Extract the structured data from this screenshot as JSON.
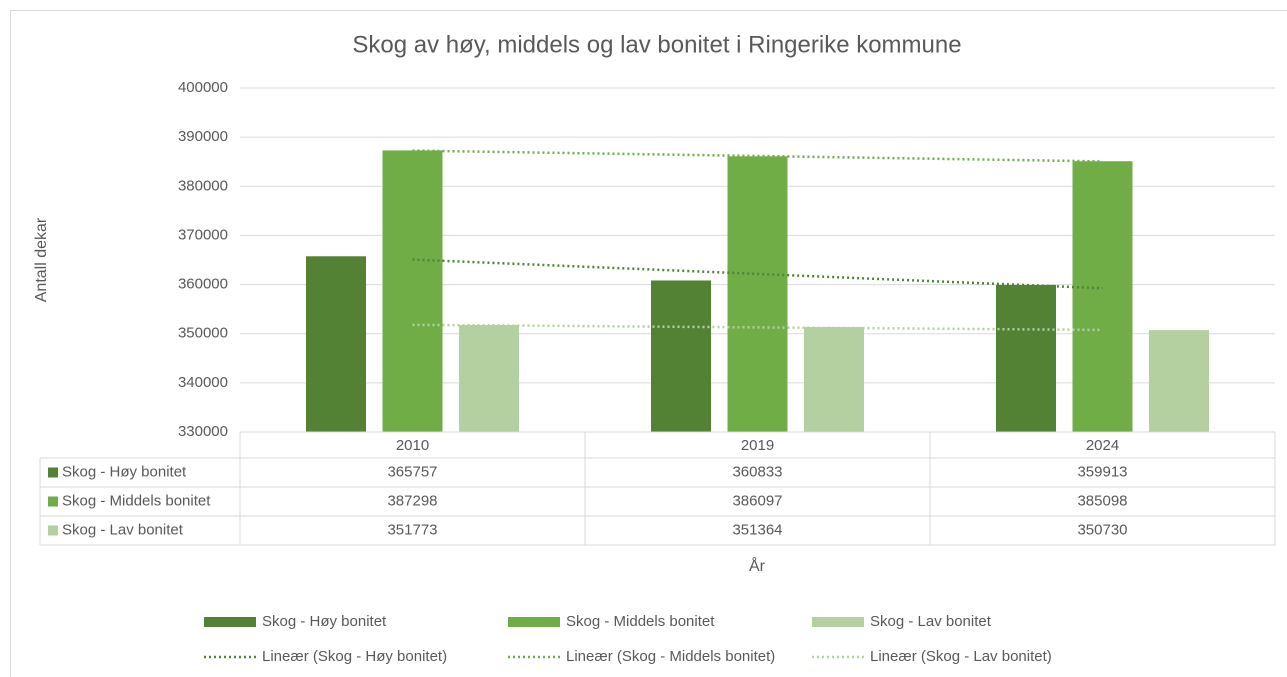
{
  "chart_data": {
    "type": "bar",
    "title": "Skog av høy, middels og lav bonitet i Ringerike kommune",
    "y_label": "Antall dekar",
    "x_label": "År",
    "categories": [
      "2010",
      "2019",
      "2024"
    ],
    "series": [
      {
        "name": "Skog - Høy bonitet",
        "color": "#548235",
        "values": [
          365757,
          360833,
          359913
        ]
      },
      {
        "name": "Skog - Middels bonitet",
        "color": "#70ad47",
        "values": [
          387298,
          386097,
          385098
        ]
      },
      {
        "name": "Skog - Lav bonitet",
        "color": "#b4cfa0",
        "values": [
          351773,
          351364,
          350730
        ]
      }
    ],
    "trendlines": [
      {
        "name": "Lineær (Skog - Høy bonitet)",
        "series": 0,
        "color": "#548235"
      },
      {
        "name": "Lineær (Skog - Middels bonitet)",
        "series": 1,
        "color": "#70ad47"
      },
      {
        "name": "Lineær (Skog - Lav bonitet)",
        "series": 2,
        "color": "#b4cfa0"
      }
    ],
    "ylim": [
      330000,
      400000
    ],
    "yticks": [
      330000,
      340000,
      350000,
      360000,
      370000,
      380000,
      390000,
      400000
    ],
    "grid": true,
    "data_table": true,
    "legend": "bottom"
  }
}
